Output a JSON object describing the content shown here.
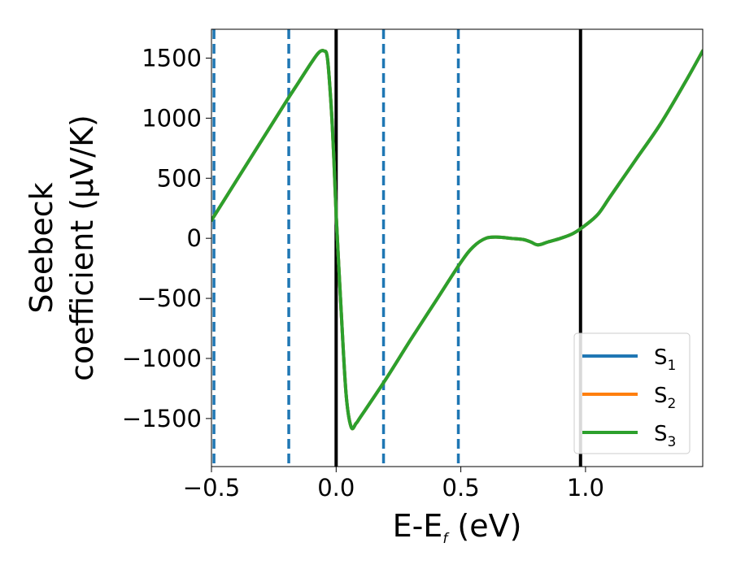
{
  "chart_data": {
    "type": "line",
    "xlabel": "E-E",
    "xlabel_sub": "f",
    "xlabel_unit": " (eV)",
    "ylabel_line1": "Seebeck",
    "ylabel_line2": "coefficient  (μV/K)",
    "xlim": [
      -0.5,
      1.47
    ],
    "ylim": [
      -1900,
      1740
    ],
    "xticks": [
      -0.5,
      0.0,
      0.5,
      1.0
    ],
    "xtick_labels": [
      "−0.5",
      "0.0",
      "0.5",
      "1.0"
    ],
    "yticks": [
      1500,
      1000,
      500,
      0,
      -500,
      -1000,
      -1500
    ],
    "ytick_labels": [
      "1500",
      "1000",
      "500",
      "0",
      "−500",
      "−1000",
      "−1500"
    ],
    "grid": false,
    "legend_position": "lower right",
    "vlines": [
      {
        "x": -0.49,
        "style": "dashed",
        "color": "#1f77b4"
      },
      {
        "x": -0.19,
        "style": "dashed",
        "color": "#1f77b4"
      },
      {
        "x": 0.19,
        "style": "dashed",
        "color": "#1f77b4"
      },
      {
        "x": 0.49,
        "style": "dashed",
        "color": "#1f77b4"
      },
      {
        "x": 0.0,
        "style": "solid",
        "color": "#000000"
      },
      {
        "x": 0.98,
        "style": "solid",
        "color": "#000000"
      }
    ],
    "series": [
      {
        "name": "S",
        "sub": "1",
        "color": "#1f77b4",
        "x": [
          -0.5,
          -0.4,
          -0.3,
          -0.2,
          -0.15,
          -0.1,
          -0.07,
          -0.05,
          -0.035,
          -0.02,
          -0.01,
          0.0,
          0.02,
          0.04,
          0.06,
          0.08,
          0.1,
          0.2,
          0.3,
          0.4,
          0.5,
          0.55,
          0.6,
          0.65,
          0.7,
          0.75,
          0.78,
          0.81,
          0.85,
          0.9,
          0.95,
          1.0,
          1.05,
          1.1,
          1.2,
          1.3,
          1.4,
          1.47
        ],
        "y": [
          150,
          480,
          810,
          1140,
          1300,
          1460,
          1545,
          1560,
          1500,
          1100,
          700,
          200,
          -600,
          -1300,
          -1570,
          -1540,
          -1480,
          -1170,
          -840,
          -520,
          -200,
          -70,
          0,
          10,
          0,
          -10,
          -30,
          -55,
          -30,
          0,
          40,
          110,
          200,
          350,
          650,
          950,
          1300,
          1560
        ]
      },
      {
        "name": "S",
        "sub": "2",
        "color": "#ff7f0e",
        "x": [
          -0.5,
          -0.4,
          -0.3,
          -0.2,
          -0.15,
          -0.1,
          -0.07,
          -0.05,
          -0.035,
          -0.02,
          -0.01,
          0.0,
          0.02,
          0.04,
          0.06,
          0.08,
          0.1,
          0.2,
          0.3,
          0.4,
          0.5,
          0.55,
          0.6,
          0.65,
          0.7,
          0.75,
          0.78,
          0.81,
          0.85,
          0.9,
          0.95,
          1.0,
          1.05,
          1.1,
          1.2,
          1.3,
          1.4,
          1.47
        ],
        "y": [
          150,
          480,
          810,
          1140,
          1300,
          1460,
          1545,
          1560,
          1500,
          1100,
          700,
          200,
          -600,
          -1300,
          -1570,
          -1540,
          -1480,
          -1170,
          -840,
          -520,
          -200,
          -70,
          0,
          10,
          0,
          -10,
          -30,
          -55,
          -30,
          0,
          40,
          110,
          200,
          350,
          650,
          950,
          1300,
          1560
        ]
      },
      {
        "name": "S",
        "sub": "3",
        "color": "#2ca02c",
        "x": [
          -0.5,
          -0.4,
          -0.3,
          -0.2,
          -0.15,
          -0.1,
          -0.07,
          -0.05,
          -0.035,
          -0.02,
          -0.01,
          0.0,
          0.02,
          0.04,
          0.06,
          0.08,
          0.1,
          0.2,
          0.3,
          0.4,
          0.5,
          0.55,
          0.6,
          0.65,
          0.7,
          0.75,
          0.78,
          0.81,
          0.85,
          0.9,
          0.95,
          1.0,
          1.05,
          1.1,
          1.2,
          1.3,
          1.4,
          1.47
        ],
        "y": [
          150,
          480,
          810,
          1140,
          1300,
          1460,
          1545,
          1560,
          1500,
          1100,
          700,
          200,
          -600,
          -1300,
          -1570,
          -1540,
          -1480,
          -1170,
          -840,
          -520,
          -200,
          -70,
          0,
          10,
          0,
          -10,
          -30,
          -55,
          -30,
          0,
          40,
          110,
          200,
          350,
          650,
          950,
          1300,
          1560
        ]
      }
    ]
  }
}
